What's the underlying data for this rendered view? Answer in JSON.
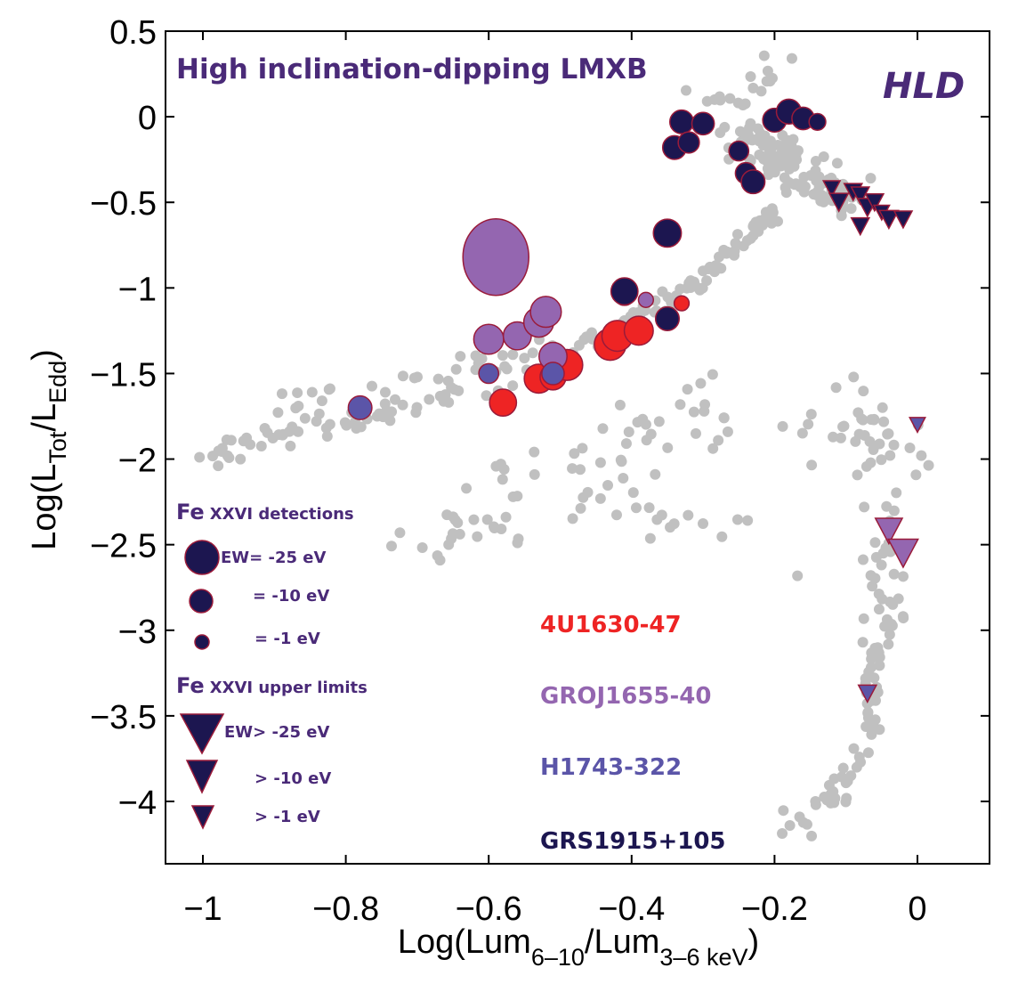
{
  "chart_data": {
    "type": "scatter",
    "title": "High inclination-dipping LMXB",
    "tag": "HLD",
    "xlabel": {
      "main": "Log(Lum",
      "sub1": "6–10",
      "mid": "/Lum",
      "sub2": "3–6 keV",
      "end": ")"
    },
    "ylabel": {
      "main": "Log(L",
      "sub1": "Tot",
      "mid": "/L",
      "sub2": "Edd",
      "end": ")"
    },
    "xlim": [
      -1.1,
      0.1
    ],
    "ylim": [
      -4.3,
      0.5
    ],
    "xticks": [
      {
        "v": -1,
        "label": "−1"
      },
      {
        "v": -0.8,
        "label": "−0.8"
      },
      {
        "v": -0.6,
        "label": "−0.6"
      },
      {
        "v": -0.4,
        "label": "−0.4"
      },
      {
        "v": -0.2,
        "label": "−0.2"
      },
      {
        "v": 0,
        "label": "0"
      }
    ],
    "yticks": [
      {
        "v": 0.5,
        "label": "0.5"
      },
      {
        "v": 0,
        "label": "0"
      },
      {
        "v": -0.5,
        "label": "−0.5"
      },
      {
        "v": -1,
        "label": "−1"
      },
      {
        "v": -1.5,
        "label": "−1.5"
      },
      {
        "v": -2,
        "label": "−2"
      },
      {
        "v": -2.5,
        "label": "−2.5"
      },
      {
        "v": -3,
        "label": "−3"
      },
      {
        "v": -3.5,
        "label": "−3.5"
      },
      {
        "v": -4,
        "label": "−4"
      }
    ],
    "colors": {
      "background_points": "#c0c0c0",
      "4U1630-47": "#ee2424",
      "GROJ1655-40": "#9466b0",
      "H1743-322": "#5b55a8",
      "GRS1915+105": "#1c1650",
      "marker_edge": "#9a1b3a",
      "title": "#4a2a78"
    },
    "legend": {
      "detections_head": {
        "fe": "Fe",
        "rest": "XXVI detections"
      },
      "upper_head": {
        "fe": "Fe",
        "rest": "XXVI upper limits"
      },
      "detections": [
        {
          "label": "EW= -25 eV",
          "ew": 25
        },
        {
          "label": "= -10 eV",
          "ew": 10
        },
        {
          "label": "= -1 eV",
          "ew": 1
        }
      ],
      "upper": [
        {
          "label": "EW> -25 eV",
          "ew": 25
        },
        {
          "label": "> -10 eV",
          "ew": 10
        },
        {
          "label": "> -1 eV",
          "ew": 1
        }
      ]
    },
    "sources": [
      {
        "name": "4U1630-47"
      },
      {
        "name": "GROJ1655-40"
      },
      {
        "name": "H1743-322"
      },
      {
        "name": "GRS1915+105"
      }
    ],
    "background_tracks": [
      {
        "from": [
          -1.0,
          -2.0
        ],
        "to": [
          -0.5,
          -1.45
        ],
        "n": 70,
        "spread": [
          0.02,
          0.12
        ]
      },
      {
        "from": [
          -0.5,
          -1.45
        ],
        "to": [
          -0.3,
          -0.95
        ],
        "n": 45,
        "spread": [
          0.02,
          0.08
        ]
      },
      {
        "from": [
          -0.3,
          -0.95
        ],
        "to": [
          -0.2,
          -0.55
        ],
        "n": 35,
        "spread": [
          0.02,
          0.07
        ]
      },
      {
        "from": [
          -0.25,
          -0.1
        ],
        "to": [
          -0.1,
          -0.5
        ],
        "n": 120,
        "spread": [
          0.06,
          0.18
        ]
      },
      {
        "from": [
          -0.3,
          0.05
        ],
        "to": [
          -0.15,
          0.3
        ],
        "n": 18,
        "spread": [
          0.05,
          0.12
        ]
      },
      {
        "from": [
          -0.9,
          -1.7
        ],
        "to": [
          -0.4,
          -1.25
        ],
        "n": 35,
        "spread": [
          0.04,
          0.1
        ]
      },
      {
        "from": [
          -0.7,
          -2.6
        ],
        "to": [
          -0.3,
          -1.6
        ],
        "n": 55,
        "spread": [
          0.12,
          0.3
        ]
      },
      {
        "from": [
          -0.3,
          -1.8
        ],
        "to": [
          0.0,
          -1.9
        ],
        "n": 30,
        "spread": [
          0.1,
          0.25
        ]
      },
      {
        "from": [
          -0.1,
          -1.6
        ],
        "to": [
          -0.02,
          -2.3
        ],
        "n": 20,
        "spread": [
          0.06,
          0.25
        ]
      },
      {
        "from": [
          -0.05,
          -2.5
        ],
        "to": [
          -0.05,
          -3.1
        ],
        "n": 30,
        "spread": [
          0.04,
          0.12
        ]
      },
      {
        "from": [
          -0.06,
          -3.1
        ],
        "to": [
          -0.07,
          -3.6
        ],
        "n": 30,
        "spread": [
          0.02,
          0.12
        ]
      },
      {
        "from": [
          -0.07,
          -3.7
        ],
        "to": [
          -0.17,
          -4.2
        ],
        "n": 30,
        "spread": [
          0.04,
          0.1
        ]
      },
      {
        "from": [
          -0.55,
          -2.1
        ],
        "to": [
          -0.2,
          -2.6
        ],
        "n": 25,
        "spread": [
          0.1,
          0.25
        ]
      }
    ],
    "series": [
      {
        "name": "4U1630-47",
        "marker": "circle",
        "points": [
          {
            "x": -0.58,
            "y": -1.67,
            "ew": 13
          },
          {
            "x": -0.53,
            "y": -1.53,
            "ew": 15
          },
          {
            "x": -0.51,
            "y": -1.52,
            "ew": 12
          },
          {
            "x": -0.49,
            "y": -1.45,
            "ew": 17
          },
          {
            "x": -0.43,
            "y": -1.33,
            "ew": 18
          },
          {
            "x": -0.42,
            "y": -1.28,
            "ew": 17
          },
          {
            "x": -0.39,
            "y": -1.25,
            "ew": 15
          },
          {
            "x": -0.33,
            "y": -1.09,
            "ew": 4
          }
        ]
      },
      {
        "name": "GROJ1655-40",
        "marker": "circle",
        "points": [
          {
            "x": -0.59,
            "y": -0.82,
            "ew": 55
          },
          {
            "x": -0.6,
            "y": -1.3,
            "ew": 16
          },
          {
            "x": -0.56,
            "y": -1.28,
            "ew": 14
          },
          {
            "x": -0.53,
            "y": -1.2,
            "ew": 16
          },
          {
            "x": -0.52,
            "y": -1.14,
            "ew": 17
          },
          {
            "x": -0.51,
            "y": -1.4,
            "ew": 14
          },
          {
            "x": -0.41,
            "y": -1.04,
            "ew": 8
          },
          {
            "x": -0.38,
            "y": -1.07,
            "ew": 4
          }
        ],
        "upper_limits": [
          {
            "x": -0.04,
            "y": -2.42,
            "ew": 18
          },
          {
            "x": -0.02,
            "y": -2.55,
            "ew": 22
          }
        ]
      },
      {
        "name": "H1743-322",
        "marker": "circle",
        "points": [
          {
            "x": -0.78,
            "y": -1.7,
            "ew": 10
          },
          {
            "x": -0.6,
            "y": -1.5,
            "ew": 7
          },
          {
            "x": -0.51,
            "y": -1.5,
            "ew": 9
          }
        ],
        "upper_limits": [
          {
            "x": 0.0,
            "y": -1.8,
            "ew": 6
          },
          {
            "x": -0.07,
            "y": -3.37,
            "ew": 8
          }
        ]
      },
      {
        "name": "GRS1915+105",
        "marker": "circle",
        "points": [
          {
            "x": -0.35,
            "y": -0.68,
            "ew": 14
          },
          {
            "x": -0.41,
            "y": -1.02,
            "ew": 13
          },
          {
            "x": -0.35,
            "y": -1.18,
            "ew": 10
          },
          {
            "x": -0.33,
            "y": -0.03,
            "ew": 10
          },
          {
            "x": -0.3,
            "y": -0.04,
            "ew": 9
          },
          {
            "x": -0.34,
            "y": -0.18,
            "ew": 10
          },
          {
            "x": -0.32,
            "y": -0.15,
            "ew": 8
          },
          {
            "x": -0.25,
            "y": -0.2,
            "ew": 7
          },
          {
            "x": -0.24,
            "y": -0.33,
            "ew": 8
          },
          {
            "x": -0.23,
            "y": -0.38,
            "ew": 10
          },
          {
            "x": -0.2,
            "y": -0.02,
            "ew": 10
          },
          {
            "x": -0.18,
            "y": 0.03,
            "ew": 11
          },
          {
            "x": -0.16,
            "y": -0.01,
            "ew": 9
          },
          {
            "x": -0.14,
            "y": -0.03,
            "ew": 5
          }
        ],
        "upper_limits": [
          {
            "x": -0.12,
            "y": -0.42,
            "ew": 7
          },
          {
            "x": -0.11,
            "y": -0.5,
            "ew": 9
          },
          {
            "x": -0.09,
            "y": -0.44,
            "ew": 8
          },
          {
            "x": -0.08,
            "y": -0.46,
            "ew": 8
          },
          {
            "x": -0.07,
            "y": -0.53,
            "ew": 9
          },
          {
            "x": -0.06,
            "y": -0.5,
            "ew": 8
          },
          {
            "x": -0.05,
            "y": -0.56,
            "ew": 6
          },
          {
            "x": -0.04,
            "y": -0.6,
            "ew": 9
          },
          {
            "x": -0.02,
            "y": -0.6,
            "ew": 8
          },
          {
            "x": -0.08,
            "y": -0.64,
            "ew": 8
          }
        ]
      }
    ]
  }
}
